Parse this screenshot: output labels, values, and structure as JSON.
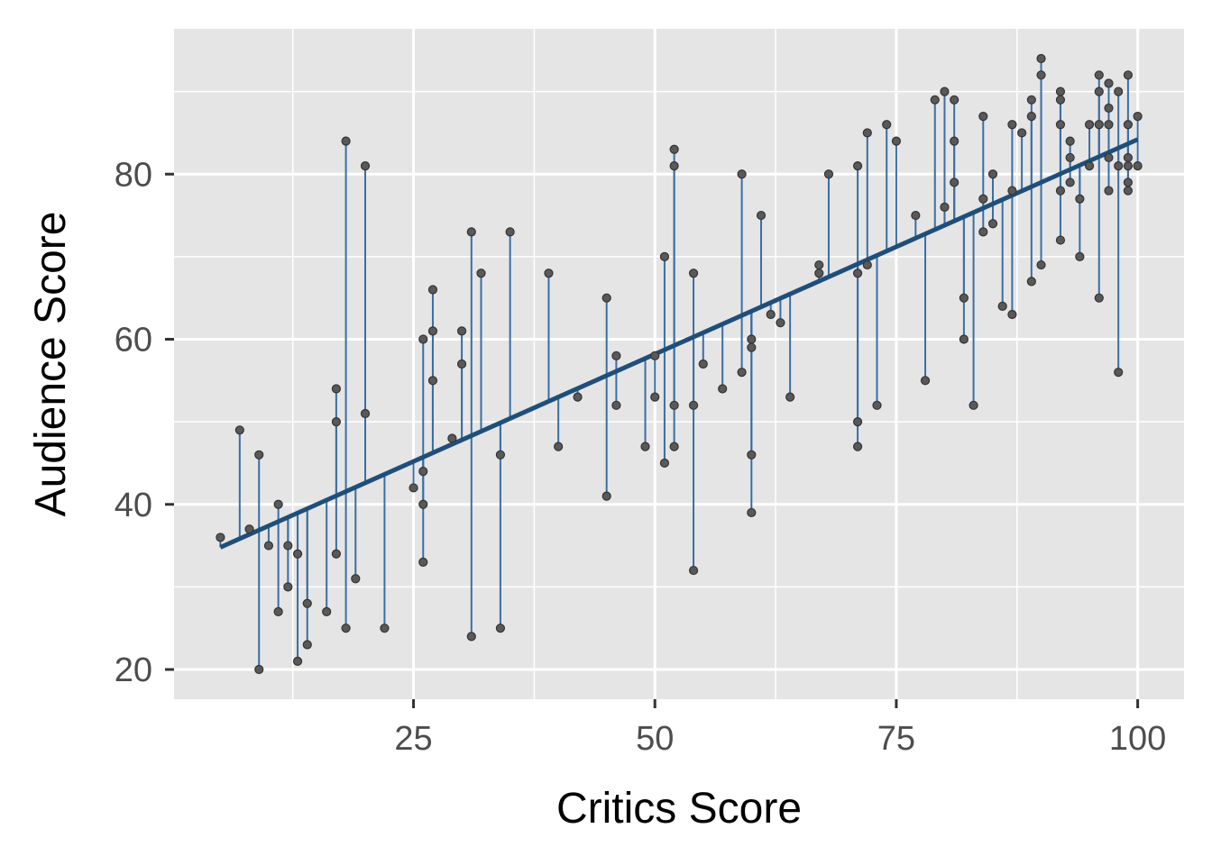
{
  "chart_data": {
    "type": "scatter",
    "xlabel": "Critics Score",
    "ylabel": "Audience Score",
    "xlim": [
      0.2,
      104.8
    ],
    "ylim": [
      16.4,
      97.6
    ],
    "x_ticks": [
      25,
      50,
      75,
      100
    ],
    "x_tick_labels": [
      "25",
      "50",
      "75",
      "100"
    ],
    "y_ticks": [
      20,
      40,
      60,
      80
    ],
    "y_tick_labels": [
      "20",
      "40",
      "60",
      "80"
    ],
    "grid": true,
    "legend": "none",
    "regression_line": {
      "intercept": 32.2,
      "slope": 0.52,
      "x_range": [
        5,
        100
      ],
      "color": "#1f4e79"
    },
    "residual_segment_color": "#3a6ea5",
    "point_color": "#595959",
    "panel_background": "#e5e5e5",
    "points": [
      [
        5,
        36
      ],
      [
        7,
        49
      ],
      [
        8,
        37
      ],
      [
        9,
        20
      ],
      [
        9,
        46
      ],
      [
        10,
        35
      ],
      [
        11,
        27
      ],
      [
        11,
        40
      ],
      [
        12,
        30
      ],
      [
        12,
        35
      ],
      [
        13,
        21
      ],
      [
        13,
        34
      ],
      [
        14,
        23
      ],
      [
        14,
        28
      ],
      [
        16,
        27
      ],
      [
        17,
        34
      ],
      [
        17,
        50
      ],
      [
        17,
        54
      ],
      [
        18,
        25
      ],
      [
        18,
        84
      ],
      [
        19,
        31
      ],
      [
        20,
        51
      ],
      [
        20,
        81
      ],
      [
        22,
        25
      ],
      [
        25,
        42
      ],
      [
        26,
        33
      ],
      [
        26,
        40
      ],
      [
        26,
        44
      ],
      [
        26,
        60
      ],
      [
        27,
        55
      ],
      [
        27,
        61
      ],
      [
        27,
        66
      ],
      [
        29,
        48
      ],
      [
        30,
        57
      ],
      [
        30,
        61
      ],
      [
        31,
        24
      ],
      [
        31,
        73
      ],
      [
        32,
        68
      ],
      [
        34,
        25
      ],
      [
        34,
        46
      ],
      [
        35,
        73
      ],
      [
        39,
        68
      ],
      [
        40,
        47
      ],
      [
        42,
        53
      ],
      [
        45,
        41
      ],
      [
        45,
        65
      ],
      [
        46,
        52
      ],
      [
        46,
        58
      ],
      [
        49,
        47
      ],
      [
        50,
        53
      ],
      [
        50,
        58
      ],
      [
        51,
        45
      ],
      [
        51,
        70
      ],
      [
        52,
        47
      ],
      [
        52,
        52
      ],
      [
        52,
        81
      ],
      [
        52,
        83
      ],
      [
        54,
        32
      ],
      [
        54,
        52
      ],
      [
        54,
        68
      ],
      [
        55,
        57
      ],
      [
        57,
        54
      ],
      [
        59,
        56
      ],
      [
        59,
        80
      ],
      [
        60,
        39
      ],
      [
        60,
        46
      ],
      [
        60,
        59
      ],
      [
        60,
        60
      ],
      [
        61,
        75
      ],
      [
        62,
        63
      ],
      [
        63,
        62
      ],
      [
        64,
        53
      ],
      [
        67,
        68
      ],
      [
        67,
        69
      ],
      [
        68,
        80
      ],
      [
        71,
        47
      ],
      [
        71,
        50
      ],
      [
        71,
        68
      ],
      [
        71,
        81
      ],
      [
        72,
        69
      ],
      [
        72,
        85
      ],
      [
        73,
        52
      ],
      [
        74,
        86
      ],
      [
        75,
        84
      ],
      [
        77,
        75
      ],
      [
        78,
        55
      ],
      [
        79,
        89
      ],
      [
        80,
        76
      ],
      [
        80,
        90
      ],
      [
        81,
        79
      ],
      [
        81,
        84
      ],
      [
        81,
        89
      ],
      [
        82,
        60
      ],
      [
        82,
        65
      ],
      [
        83,
        52
      ],
      [
        84,
        73
      ],
      [
        84,
        77
      ],
      [
        84,
        87
      ],
      [
        85,
        74
      ],
      [
        85,
        80
      ],
      [
        86,
        64
      ],
      [
        87,
        63
      ],
      [
        87,
        78
      ],
      [
        87,
        86
      ],
      [
        88,
        85
      ],
      [
        89,
        67
      ],
      [
        89,
        87
      ],
      [
        89,
        89
      ],
      [
        90,
        69
      ],
      [
        90,
        92
      ],
      [
        90,
        94
      ],
      [
        92,
        72
      ],
      [
        92,
        78
      ],
      [
        92,
        86
      ],
      [
        92,
        89
      ],
      [
        92,
        90
      ],
      [
        93,
        79
      ],
      [
        93,
        82
      ],
      [
        93,
        84
      ],
      [
        94,
        70
      ],
      [
        94,
        77
      ],
      [
        95,
        81
      ],
      [
        95,
        86
      ],
      [
        96,
        65
      ],
      [
        96,
        86
      ],
      [
        96,
        90
      ],
      [
        96,
        92
      ],
      [
        97,
        78
      ],
      [
        97,
        82
      ],
      [
        97,
        86
      ],
      [
        97,
        88
      ],
      [
        97,
        91
      ],
      [
        98,
        56
      ],
      [
        98,
        81
      ],
      [
        98,
        90
      ],
      [
        99,
        78
      ],
      [
        99,
        79
      ],
      [
        99,
        81
      ],
      [
        99,
        82
      ],
      [
        99,
        86
      ],
      [
        99,
        92
      ],
      [
        100,
        81
      ],
      [
        100,
        87
      ]
    ]
  }
}
